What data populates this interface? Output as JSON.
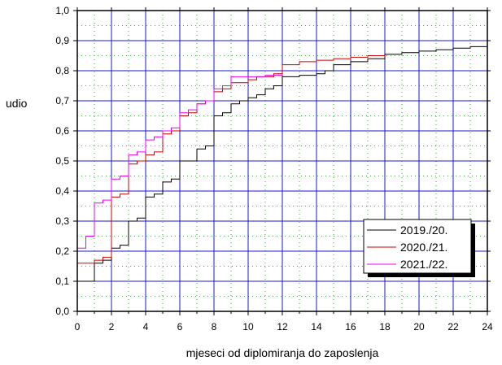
{
  "chart_data": {
    "type": "line",
    "xlabel": "mjeseci od diplomiranja do zaposlenja",
    "ylabel": "udio",
    "xlim": [
      0,
      24
    ],
    "ylim": [
      0,
      1
    ],
    "x_ticks": [
      "0",
      "2",
      "4",
      "6",
      "8",
      "10",
      "12",
      "14",
      "16",
      "18",
      "20",
      "22",
      "24"
    ],
    "y_ticks": [
      "0,0",
      "0,1",
      "0,2",
      "0,3",
      "0,4",
      "0,5",
      "0,6",
      "0,7",
      "0,8",
      "0,9",
      "1,0"
    ],
    "grid": true,
    "legend_position": "bottom-right",
    "series": [
      {
        "name": "2019./20.",
        "color": "#000000",
        "points": [
          [
            0,
            0.1
          ],
          [
            1,
            0.16
          ],
          [
            1.5,
            0.17
          ],
          [
            2,
            0.21
          ],
          [
            2.5,
            0.22
          ],
          [
            3,
            0.3
          ],
          [
            3.5,
            0.31
          ],
          [
            4,
            0.38
          ],
          [
            4.5,
            0.39
          ],
          [
            5,
            0.43
          ],
          [
            5.5,
            0.44
          ],
          [
            6,
            0.5
          ],
          [
            6.5,
            0.5
          ],
          [
            7,
            0.54
          ],
          [
            7.5,
            0.55
          ],
          [
            8,
            0.65
          ],
          [
            8.5,
            0.66
          ],
          [
            9,
            0.69
          ],
          [
            9.5,
            0.7
          ],
          [
            10,
            0.71
          ],
          [
            10.5,
            0.72
          ],
          [
            11,
            0.74
          ],
          [
            11.5,
            0.75
          ],
          [
            12,
            0.78
          ],
          [
            13,
            0.785
          ],
          [
            14,
            0.79
          ],
          [
            14.5,
            0.8
          ],
          [
            15,
            0.82
          ],
          [
            16,
            0.83
          ],
          [
            17,
            0.84
          ],
          [
            18,
            0.855
          ],
          [
            19,
            0.86
          ],
          [
            20,
            0.865
          ],
          [
            21,
            0.87
          ],
          [
            22,
            0.875
          ],
          [
            23,
            0.88
          ],
          [
            24,
            0.885
          ]
        ]
      },
      {
        "name": "2020./21.",
        "color": "#cc0000",
        "points": [
          [
            0,
            0.16
          ],
          [
            1,
            0.17
          ],
          [
            1.5,
            0.18
          ],
          [
            2,
            0.38
          ],
          [
            2.5,
            0.39
          ],
          [
            3,
            0.49
          ],
          [
            3.5,
            0.5
          ],
          [
            4,
            0.52
          ],
          [
            4.5,
            0.53
          ],
          [
            5,
            0.59
          ],
          [
            5.5,
            0.6
          ],
          [
            6,
            0.65
          ],
          [
            6.5,
            0.66
          ],
          [
            7,
            0.69
          ],
          [
            7.5,
            0.7
          ],
          [
            8,
            0.73
          ],
          [
            8.5,
            0.74
          ],
          [
            9,
            0.76
          ],
          [
            9.5,
            0.76
          ],
          [
            10,
            0.77
          ],
          [
            10.5,
            0.78
          ],
          [
            11,
            0.78
          ],
          [
            11.5,
            0.79
          ],
          [
            12,
            0.82
          ],
          [
            13,
            0.83
          ],
          [
            14,
            0.835
          ],
          [
            15,
            0.84
          ],
          [
            16,
            0.845
          ],
          [
            17,
            0.85
          ],
          [
            18,
            0.85
          ]
        ]
      },
      {
        "name": "2021./22.",
        "color": "#ee00ee",
        "points": [
          [
            0,
            0.21
          ],
          [
            0.5,
            0.25
          ],
          [
            1,
            0.36
          ],
          [
            1.5,
            0.37
          ],
          [
            2,
            0.44
          ],
          [
            2.5,
            0.45
          ],
          [
            3,
            0.52
          ],
          [
            3.5,
            0.53
          ],
          [
            4,
            0.57
          ],
          [
            4.5,
            0.58
          ],
          [
            5,
            0.6
          ],
          [
            5.5,
            0.61
          ],
          [
            6,
            0.66
          ],
          [
            6.5,
            0.67
          ],
          [
            7,
            0.69
          ],
          [
            7.5,
            0.7
          ],
          [
            8,
            0.74
          ],
          [
            8.5,
            0.75
          ],
          [
            9,
            0.78
          ],
          [
            9.5,
            0.78
          ],
          [
            10,
            0.78
          ],
          [
            11,
            0.785
          ],
          [
            12,
            0.79
          ]
        ]
      }
    ]
  }
}
